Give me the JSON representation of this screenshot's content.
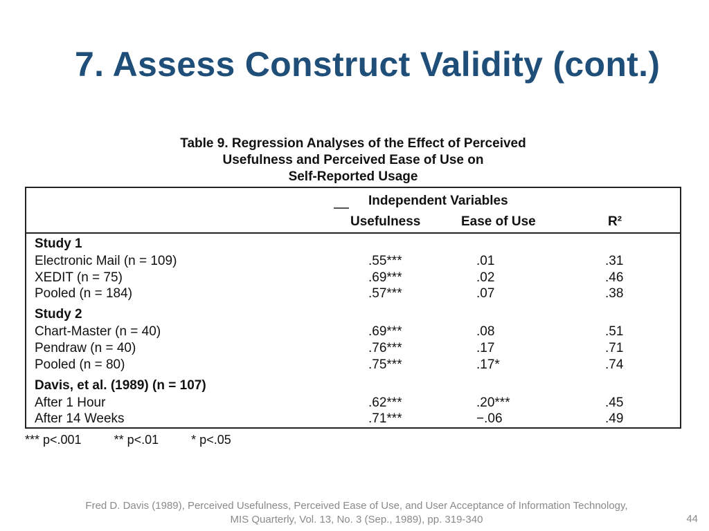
{
  "slide": {
    "title": "7. Assess Construct Validity (cont.)",
    "page_number": "44",
    "citation_line1": "Fred D. Davis (1989), Perceived Usefulness, Perceived Ease of Use, and User Acceptance of Information Technology,",
    "citation_line2": "MIS Quarterly, Vol. 13, No. 3 (Sep., 1989), pp. 319-340"
  },
  "table": {
    "caption_line1": "Table 9. Regression Analyses of the Effect of Perceived",
    "caption_line2": "Usefulness and Perceived Ease of Use on",
    "caption_line3": "Self-Reported Usage",
    "group_header": "Independent Variables",
    "col_usefulness": "Usefulness",
    "col_ease": "Ease of Use",
    "col_r2": "R²",
    "rows": [
      {
        "label": "Study 1",
        "u": "",
        "e": "",
        "r": ""
      },
      {
        "label": "Electronic Mail (n = 109)",
        "u": ".55***",
        "e": ".01",
        "r": ".31"
      },
      {
        "label": "XEDIT (n = 75)",
        "u": ".69***",
        "e": ".02",
        "r": ".46"
      },
      {
        "label": "Pooled (n = 184)",
        "u": ".57***",
        "e": ".07",
        "r": ".38"
      },
      {
        "label": "Study 2",
        "u": "",
        "e": "",
        "r": ""
      },
      {
        "label": "Chart-Master (n = 40)",
        "u": ".69***",
        "e": ".08",
        "r": ".51"
      },
      {
        "label": "Pendraw (n = 40)",
        "u": ".76***",
        "e": ".17",
        "r": ".71"
      },
      {
        "label": "Pooled (n = 80)",
        "u": ".75***",
        "e": ".17*",
        "r": ".74"
      },
      {
        "label": "Davis, et al. (1989) (n = 107)",
        "u": "",
        "e": "",
        "r": ""
      },
      {
        "label": "After 1 Hour",
        "u": ".62***",
        "e": ".20***",
        "r": ".45"
      },
      {
        "label": "After 14 Weeks",
        "u": ".71***",
        "e": "−.06",
        "r": ".49"
      }
    ],
    "footnote_1": "*** p<.001",
    "footnote_2": "** p<.01",
    "footnote_3": "* p<.05"
  }
}
